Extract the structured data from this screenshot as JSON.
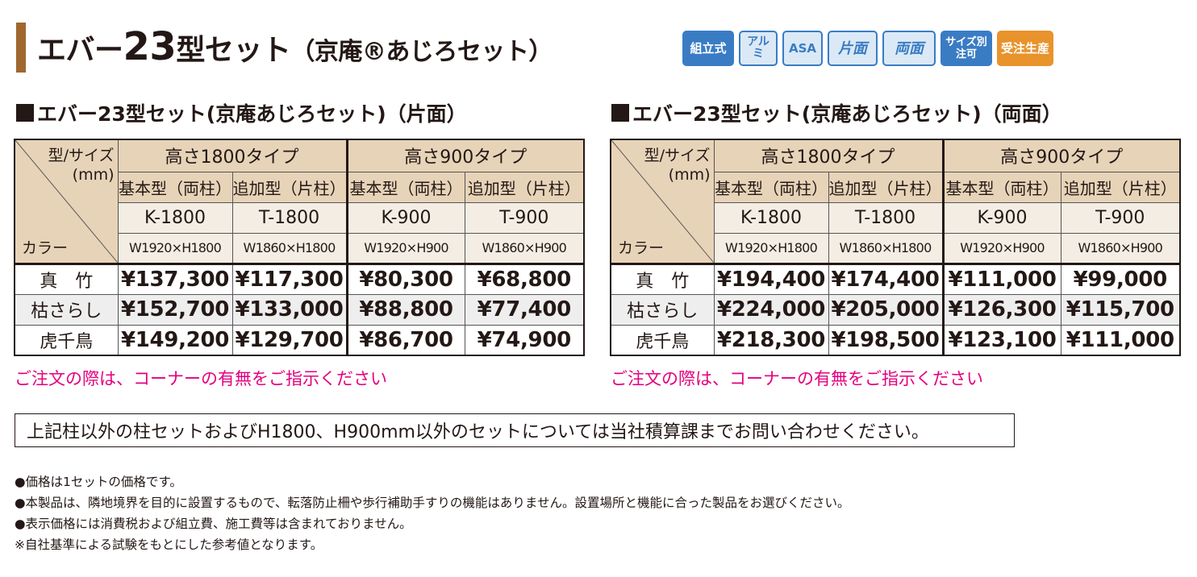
{
  "header": {
    "title_prefix": "エバー",
    "title_number": "23",
    "title_main": "型セット",
    "title_sub": "（京庵®あじろセット）"
  },
  "badges": [
    {
      "label": "組立式",
      "icon": "assembly-badge"
    },
    {
      "label": "アルミ",
      "icon": "aluminum-badge"
    },
    {
      "label": "ASA",
      "icon": "asa-badge"
    },
    {
      "label": "片面",
      "icon": "single-side-badge"
    },
    {
      "label": "両面",
      "icon": "double-side-badge"
    },
    {
      "label": "サイズ別注可",
      "icon": "custom-size-badge"
    },
    {
      "label": "受注生産",
      "icon": "made-to-order-badge"
    }
  ],
  "colors": {
    "accent_bar": "#a0672f",
    "header_bg": "#e7d3b8",
    "note_red": "#e4007f",
    "badge_blue": "#3a7cc4",
    "badge_orange": "#e8932c"
  },
  "tables": [
    {
      "title": "エバー23型セット(京庵あじろセット)（片面）",
      "corner": {
        "top": "型/サイズ",
        "mid": "(mm)",
        "bottom": "カラー"
      },
      "groups": [
        "高さ1800タイプ",
        "高さ900タイプ"
      ],
      "types": [
        "基本型（両柱）",
        "追加型（片柱）",
        "基本型（両柱）",
        "追加型（片柱）"
      ],
      "codes": [
        "K-1800",
        "T-1800",
        "K-900",
        "T-900"
      ],
      "dims": [
        "W1920×H1800",
        "W1860×H1800",
        "W1920×H900",
        "W1860×H900"
      ],
      "rows": [
        {
          "color": "真　竹",
          "prices": [
            "¥137,300",
            "¥117,300",
            "¥80,300",
            "¥68,800"
          ]
        },
        {
          "color": "枯さらし",
          "prices": [
            "¥152,700",
            "¥133,000",
            "¥88,800",
            "¥77,400"
          ]
        },
        {
          "color": "虎千鳥",
          "prices": [
            "¥149,200",
            "¥129,700",
            "¥86,700",
            "¥74,900"
          ]
        }
      ],
      "note": "ご注文の際は、コーナーの有無をご指示ください"
    },
    {
      "title": "エバー23型セット(京庵あじろセット)（両面）",
      "corner": {
        "top": "型/サイズ",
        "mid": "(mm)",
        "bottom": "カラー"
      },
      "groups": [
        "高さ1800タイプ",
        "高さ900タイプ"
      ],
      "types": [
        "基本型（両柱）",
        "追加型（片柱）",
        "基本型（両柱）",
        "追加型（片柱）"
      ],
      "codes": [
        "K-1800",
        "T-1800",
        "K-900",
        "T-900"
      ],
      "dims": [
        "W1920×H1800",
        "W1860×H1800",
        "W1920×H900",
        "W1860×H900"
      ],
      "rows": [
        {
          "color": "真　竹",
          "prices": [
            "¥194,400",
            "¥174,400",
            "¥111,000",
            "¥99,000"
          ]
        },
        {
          "color": "枯さらし",
          "prices": [
            "¥224,000",
            "¥205,000",
            "¥126,300",
            "¥115,700"
          ]
        },
        {
          "color": "虎千鳥",
          "prices": [
            "¥218,300",
            "¥198,500",
            "¥123,100",
            "¥111,000"
          ]
        }
      ],
      "note": "ご注文の際は、コーナーの有無をご指示ください"
    }
  ],
  "notice": "上記柱以外の柱セットおよびH1800、H900mm以外のセットについては当社積算課までお問い合わせください。",
  "footnotes": [
    "●価格は1セットの価格です。",
    "●本製品は、隣地境界を目的に設置するもので、転落防止柵や歩行補助手すりの機能はありません。設置場所と機能に合った製品をお選びください。",
    "●表示価格には消費税および組立費、施工費等は含まれておりません。",
    "※自社基準による試験をもとにした参考値となります。"
  ]
}
